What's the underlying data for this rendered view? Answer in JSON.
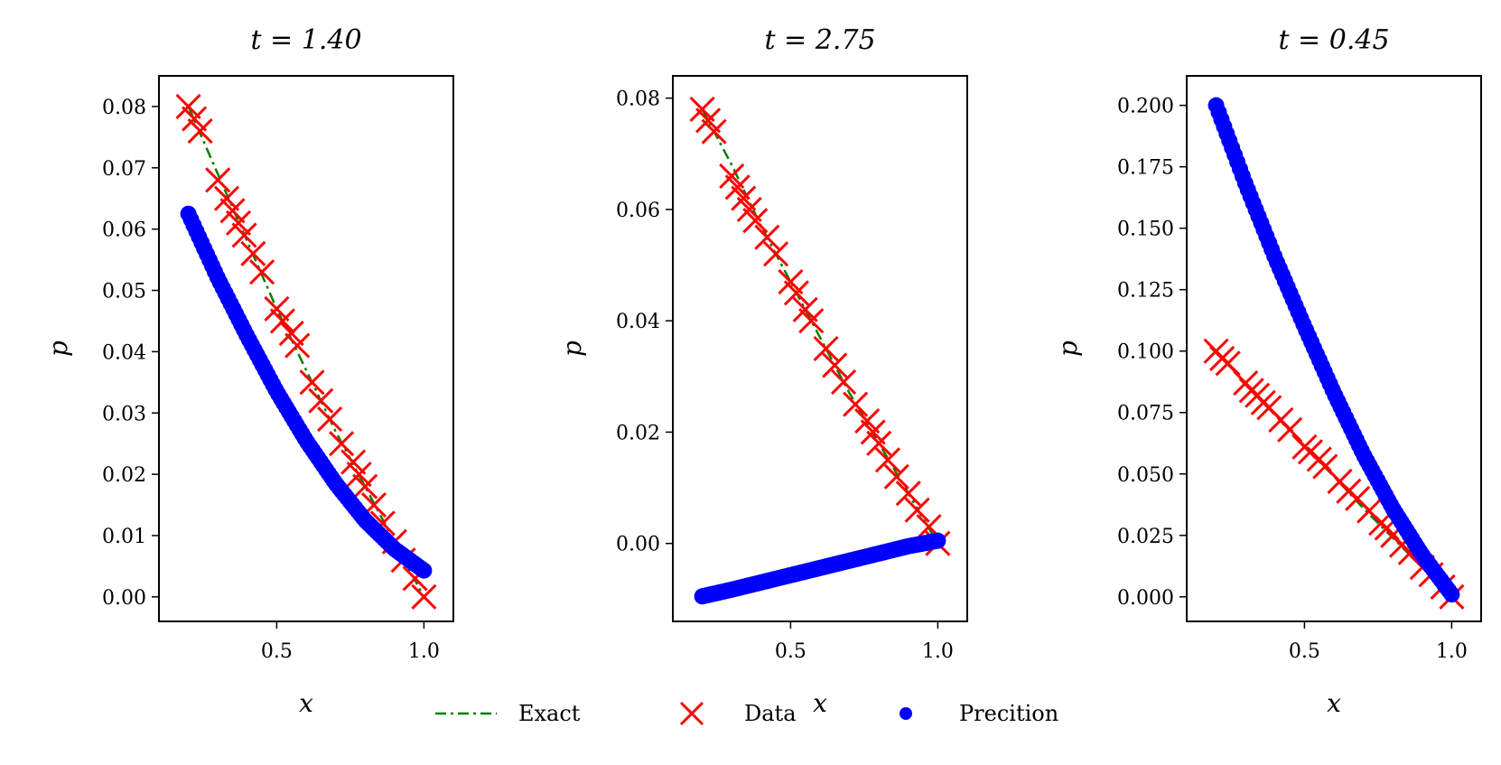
{
  "legend": {
    "placement": "bottom-center",
    "items": [
      {
        "label": "Exact",
        "marker": "dash-dot-line",
        "color": "#008000"
      },
      {
        "label": "Data",
        "marker": "x",
        "color": "#ff0000"
      },
      {
        "label": "Precition",
        "marker": "dot",
        "color": "#0000ff"
      }
    ]
  },
  "chart_data": [
    {
      "type": "line",
      "title": "t = 1.40",
      "xlabel": "x",
      "ylabel": "p",
      "xlim": [
        0.1,
        1.1
      ],
      "ylim": [
        -0.004,
        0.085
      ],
      "xticks": [
        0.5,
        1.0
      ],
      "xtick_labels": [
        "0.5",
        "1.0"
      ],
      "yticks": [
        0.0,
        0.01,
        0.02,
        0.03,
        0.04,
        0.05,
        0.06,
        0.07,
        0.08
      ],
      "ytick_labels": [
        "0.00",
        "0.01",
        "0.02",
        "0.03",
        "0.04",
        "0.05",
        "0.06",
        "0.07",
        "0.08"
      ],
      "grid": false,
      "series": [
        {
          "name": "Exact",
          "color": "#008000",
          "style": "dashdot",
          "x": [
            0.2,
            0.3,
            0.4,
            0.5,
            0.6,
            0.7,
            0.8,
            0.9,
            1.0
          ],
          "y": [
            0.08,
            0.069,
            0.058,
            0.047,
            0.037,
            0.027,
            0.018,
            0.009,
            0.0
          ]
        },
        {
          "name": "Data",
          "color": "#ff0000",
          "style": "x",
          "x": [
            0.2,
            0.22,
            0.24,
            0.3,
            0.33,
            0.35,
            0.37,
            0.39,
            0.42,
            0.45,
            0.5,
            0.52,
            0.55,
            0.57,
            0.62,
            0.65,
            0.68,
            0.72,
            0.76,
            0.78,
            0.8,
            0.83,
            0.86,
            0.9,
            0.93,
            0.97,
            1.0
          ],
          "y": [
            0.08,
            0.078,
            0.076,
            0.068,
            0.065,
            0.063,
            0.061,
            0.059,
            0.056,
            0.053,
            0.047,
            0.045,
            0.043,
            0.041,
            0.035,
            0.032,
            0.029,
            0.025,
            0.022,
            0.02,
            0.018,
            0.015,
            0.012,
            0.009,
            0.006,
            0.003,
            0.0
          ]
        },
        {
          "name": "Precition",
          "color": "#0000ff",
          "style": "dots",
          "x": [
            0.2,
            0.3,
            0.4,
            0.5,
            0.6,
            0.7,
            0.8,
            0.9,
            1.0
          ],
          "y": [
            0.0625,
            0.052,
            0.0425,
            0.0335,
            0.0255,
            0.0185,
            0.0125,
            0.0078,
            0.0043
          ]
        }
      ]
    },
    {
      "type": "line",
      "title": "t = 2.75",
      "xlabel": "x",
      "ylabel": "p",
      "xlim": [
        0.1,
        1.1
      ],
      "ylim": [
        -0.014,
        0.084
      ],
      "xticks": [
        0.5,
        1.0
      ],
      "xtick_labels": [
        "0.5",
        "1.0"
      ],
      "yticks": [
        0.0,
        0.02,
        0.04,
        0.06,
        0.08
      ],
      "ytick_labels": [
        "0.00",
        "0.02",
        "0.04",
        "0.06",
        "0.08"
      ],
      "grid": false,
      "series": [
        {
          "name": "Exact",
          "color": "#008000",
          "style": "dashdot",
          "x": [
            0.2,
            0.3,
            0.4,
            0.5,
            0.6,
            0.7,
            0.8,
            0.9,
            1.0
          ],
          "y": [
            0.078,
            0.068,
            0.057,
            0.047,
            0.037,
            0.027,
            0.018,
            0.009,
            0.0
          ]
        },
        {
          "name": "Data",
          "color": "#ff0000",
          "style": "x",
          "x": [
            0.2,
            0.22,
            0.24,
            0.3,
            0.32,
            0.34,
            0.36,
            0.38,
            0.42,
            0.45,
            0.5,
            0.52,
            0.55,
            0.57,
            0.62,
            0.65,
            0.68,
            0.72,
            0.76,
            0.78,
            0.8,
            0.83,
            0.86,
            0.9,
            0.93,
            0.97,
            1.0
          ],
          "y": [
            0.078,
            0.076,
            0.074,
            0.066,
            0.064,
            0.062,
            0.06,
            0.058,
            0.055,
            0.052,
            0.047,
            0.045,
            0.042,
            0.04,
            0.035,
            0.032,
            0.029,
            0.025,
            0.022,
            0.02,
            0.018,
            0.015,
            0.012,
            0.009,
            0.006,
            0.003,
            0.0
          ]
        },
        {
          "name": "Precition",
          "color": "#0000ff",
          "style": "dots",
          "x": [
            0.2,
            0.3,
            0.4,
            0.5,
            0.6,
            0.7,
            0.8,
            0.9,
            1.0
          ],
          "y": [
            -0.0095,
            -0.0083,
            -0.007,
            -0.0057,
            -0.0044,
            -0.0031,
            -0.0018,
            -0.0005,
            0.0005
          ]
        }
      ]
    },
    {
      "type": "line",
      "title": "t = 0.45",
      "xlabel": "x",
      "ylabel": "p",
      "xlim": [
        0.1,
        1.1
      ],
      "ylim": [
        -0.01,
        0.212
      ],
      "xticks": [
        0.5,
        1.0
      ],
      "xtick_labels": [
        "0.5",
        "1.0"
      ],
      "yticks": [
        0.0,
        0.025,
        0.05,
        0.075,
        0.1,
        0.125,
        0.15,
        0.175,
        0.2
      ],
      "ytick_labels": [
        "0.000",
        "0.025",
        "0.050",
        "0.075",
        "0.100",
        "0.125",
        "0.150",
        "0.175",
        "0.200"
      ],
      "grid": false,
      "series": [
        {
          "name": "Exact",
          "color": "#008000",
          "style": "dashdot",
          "x": [
            0.2,
            0.3,
            0.4,
            0.5,
            0.6,
            0.7,
            0.8,
            0.9,
            1.0
          ],
          "y": [
            0.1,
            0.087,
            0.074,
            0.061,
            0.049,
            0.036,
            0.024,
            0.012,
            0.0
          ]
        },
        {
          "name": "Data",
          "color": "#ff0000",
          "style": "x",
          "x": [
            0.2,
            0.22,
            0.24,
            0.3,
            0.32,
            0.34,
            0.36,
            0.38,
            0.42,
            0.45,
            0.5,
            0.52,
            0.55,
            0.57,
            0.62,
            0.65,
            0.68,
            0.72,
            0.76,
            0.78,
            0.8,
            0.83,
            0.86,
            0.9,
            0.93,
            0.97,
            1.0
          ],
          "y": [
            0.1,
            0.097,
            0.095,
            0.087,
            0.084,
            0.082,
            0.079,
            0.077,
            0.072,
            0.068,
            0.061,
            0.059,
            0.056,
            0.053,
            0.047,
            0.043,
            0.04,
            0.035,
            0.03,
            0.028,
            0.025,
            0.021,
            0.018,
            0.012,
            0.009,
            0.004,
            0.0
          ]
        },
        {
          "name": "Precition",
          "color": "#0000ff",
          "style": "dots",
          "x": [
            0.2,
            0.3,
            0.4,
            0.5,
            0.6,
            0.7,
            0.8,
            0.9,
            1.0
          ],
          "y": [
            0.2,
            0.168,
            0.138,
            0.11,
            0.083,
            0.058,
            0.036,
            0.017,
            0.001
          ]
        }
      ]
    }
  ]
}
